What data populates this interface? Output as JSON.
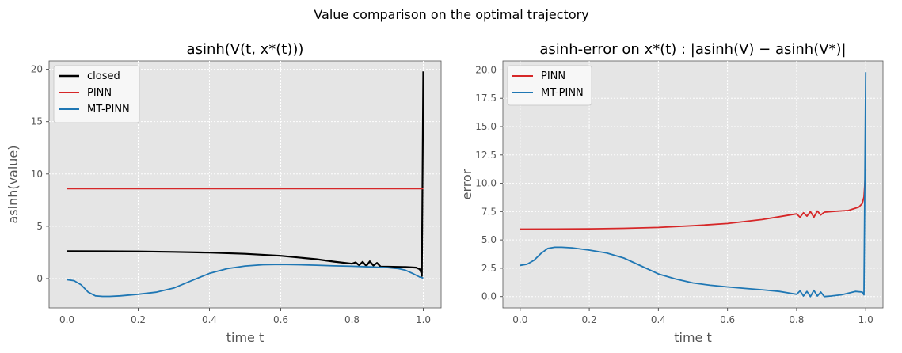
{
  "figure_title": "Value comparison on the optimal trajectory",
  "chart_data": [
    {
      "type": "line",
      "title": "asinh(V(t, x*(t)))",
      "xlabel": "time t",
      "ylabel": "asinh(value)",
      "xlim": [
        -0.05,
        1.05
      ],
      "ylim": [
        -2.8,
        20.8
      ],
      "xticks": [
        0.0,
        0.2,
        0.4,
        0.6,
        0.8,
        1.0
      ],
      "xtick_labels": [
        "0.0",
        "0.2",
        "0.4",
        "0.6",
        "0.8",
        "1.0"
      ],
      "yticks": [
        0,
        5,
        10,
        15,
        20
      ],
      "ytick_labels": [
        "0",
        "5",
        "10",
        "15",
        "20"
      ],
      "grid": true,
      "legend_position": "upper-left",
      "series": [
        {
          "name": "closed",
          "color": "#000000",
          "x": [
            0.0,
            0.1,
            0.2,
            0.3,
            0.4,
            0.5,
            0.6,
            0.7,
            0.75,
            0.8,
            0.81,
            0.82,
            0.83,
            0.84,
            0.85,
            0.86,
            0.87,
            0.88,
            0.9,
            0.95,
            0.98,
            0.99,
            0.995,
            0.996,
            1.0
          ],
          "y": [
            2.62,
            2.61,
            2.59,
            2.55,
            2.48,
            2.37,
            2.18,
            1.85,
            1.62,
            1.42,
            1.55,
            1.28,
            1.6,
            1.2,
            1.65,
            1.25,
            1.5,
            1.15,
            1.13,
            1.1,
            1.05,
            0.9,
            0.5,
            0.25,
            19.8
          ]
        },
        {
          "name": "PINN",
          "color": "#d62728",
          "x": [
            0.0,
            1.0
          ],
          "y": [
            8.6,
            8.6
          ]
        },
        {
          "name": "MT-PINN",
          "color": "#1f77b4",
          "x": [
            0.0,
            0.02,
            0.04,
            0.06,
            0.08,
            0.1,
            0.12,
            0.15,
            0.2,
            0.25,
            0.3,
            0.35,
            0.4,
            0.45,
            0.5,
            0.55,
            0.6,
            0.65,
            0.7,
            0.75,
            0.8,
            0.85,
            0.9,
            0.93,
            0.95,
            0.97,
            0.99,
            1.0
          ],
          "y": [
            -0.1,
            -0.2,
            -0.6,
            -1.3,
            -1.65,
            -1.7,
            -1.7,
            -1.65,
            -1.5,
            -1.3,
            -0.9,
            -0.2,
            0.5,
            0.95,
            1.2,
            1.32,
            1.35,
            1.32,
            1.28,
            1.22,
            1.18,
            1.12,
            1.05,
            0.95,
            0.8,
            0.5,
            0.15,
            0.05
          ]
        }
      ]
    },
    {
      "type": "line",
      "title": "asinh-error on x*(t) :  |asinh(V) − asinh(V*)|",
      "xlabel": "time t",
      "ylabel": "error",
      "xlim": [
        -0.05,
        1.05
      ],
      "ylim": [
        -1.0,
        20.8
      ],
      "xticks": [
        0.0,
        0.2,
        0.4,
        0.6,
        0.8,
        1.0
      ],
      "xtick_labels": [
        "0.0",
        "0.2",
        "0.4",
        "0.6",
        "0.8",
        "1.0"
      ],
      "yticks": [
        0,
        2.5,
        5,
        7.5,
        10,
        12.5,
        15,
        17.5,
        20
      ],
      "ytick_labels": [
        "0.0",
        "2.5",
        "5.0",
        "7.5",
        "10.0",
        "12.5",
        "15.0",
        "17.5",
        "20.0"
      ],
      "grid": true,
      "legend_position": "upper-left",
      "series": [
        {
          "name": "PINN",
          "color": "#d62728",
          "x": [
            0.0,
            0.1,
            0.2,
            0.3,
            0.4,
            0.5,
            0.6,
            0.7,
            0.75,
            0.8,
            0.81,
            0.82,
            0.83,
            0.84,
            0.85,
            0.86,
            0.87,
            0.88,
            0.9,
            0.95,
            0.98,
            0.99,
            0.995,
            1.0
          ],
          "y": [
            5.95,
            5.96,
            5.98,
            6.02,
            6.1,
            6.25,
            6.45,
            6.8,
            7.05,
            7.3,
            7.0,
            7.4,
            7.1,
            7.5,
            7.0,
            7.55,
            7.2,
            7.45,
            7.5,
            7.6,
            7.9,
            8.2,
            8.8,
            11.2
          ]
        },
        {
          "name": "MT-PINN",
          "color": "#1f77b4",
          "x": [
            0.0,
            0.02,
            0.04,
            0.06,
            0.08,
            0.1,
            0.12,
            0.15,
            0.2,
            0.25,
            0.3,
            0.35,
            0.4,
            0.45,
            0.5,
            0.55,
            0.6,
            0.65,
            0.7,
            0.75,
            0.78,
            0.8,
            0.81,
            0.82,
            0.83,
            0.84,
            0.85,
            0.86,
            0.87,
            0.88,
            0.9,
            0.93,
            0.95,
            0.97,
            0.99,
            0.995,
            1.0
          ],
          "y": [
            2.75,
            2.85,
            3.2,
            3.8,
            4.25,
            4.35,
            4.35,
            4.3,
            4.1,
            3.85,
            3.4,
            2.7,
            2.0,
            1.55,
            1.2,
            1.0,
            0.85,
            0.72,
            0.6,
            0.45,
            0.3,
            0.2,
            0.5,
            0.05,
            0.45,
            0.0,
            0.55,
            0.05,
            0.4,
            0.0,
            0.05,
            0.15,
            0.3,
            0.45,
            0.4,
            0.15,
            19.8
          ]
        }
      ]
    }
  ]
}
